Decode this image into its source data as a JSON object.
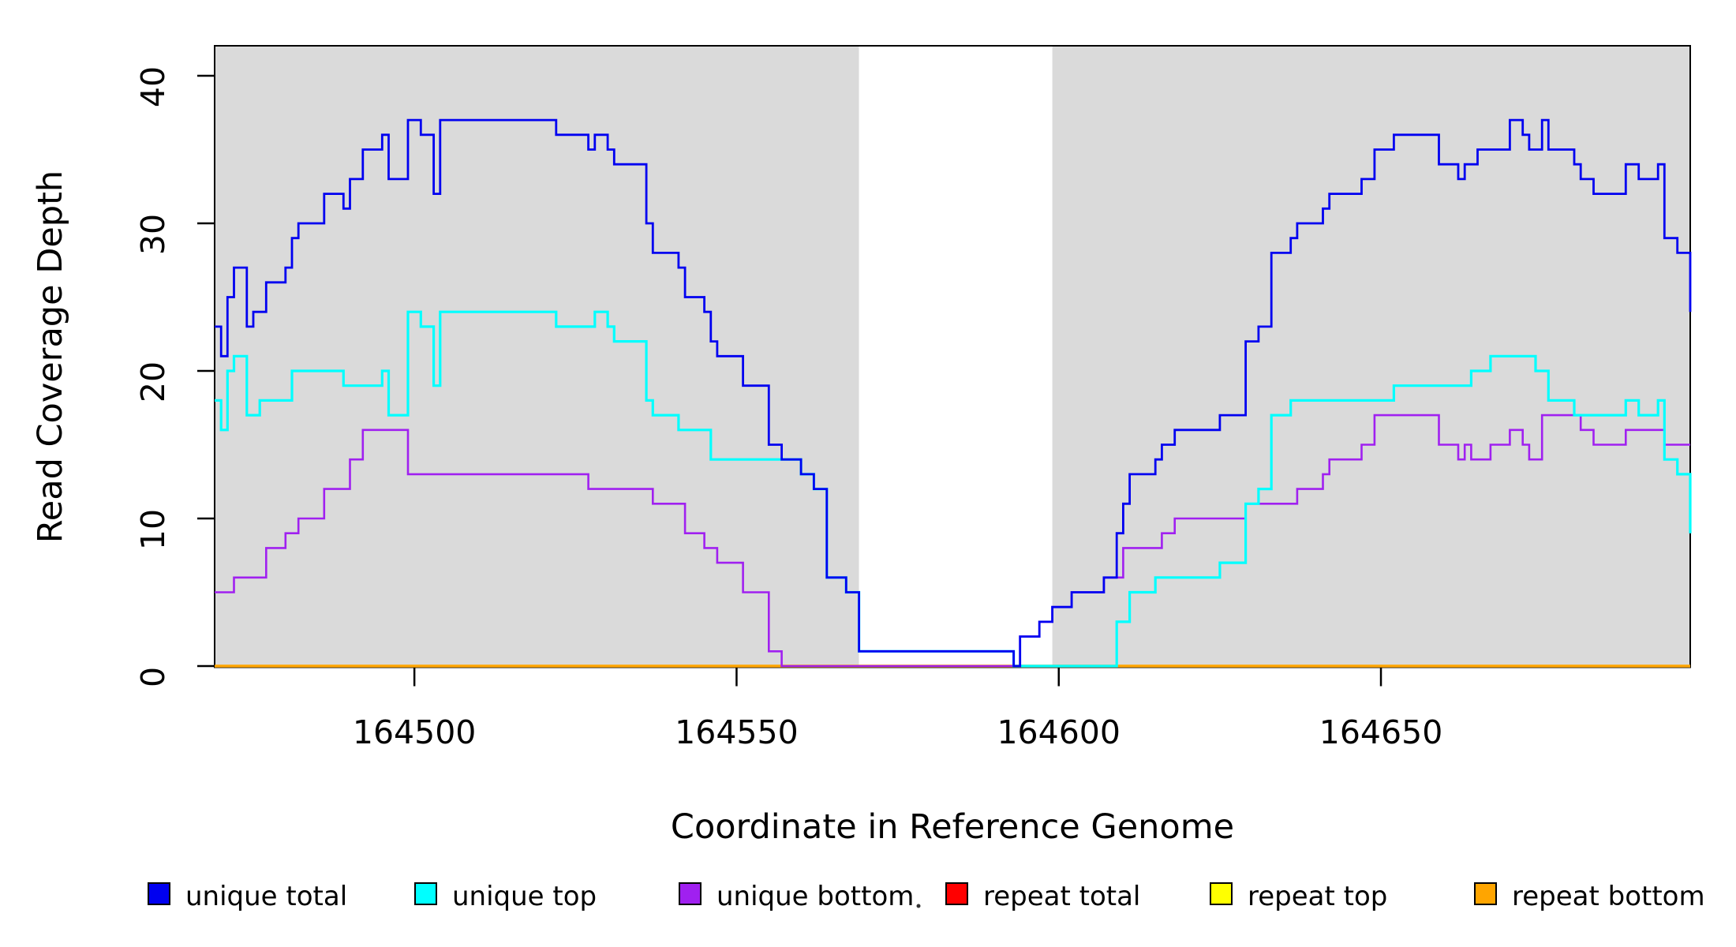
{
  "chart_data": {
    "type": "line",
    "subtype": "step",
    "title": "",
    "xlabel": "Coordinate in Reference Genome",
    "ylabel": "Read Coverage Depth",
    "xlim": [
      164469,
      164698
    ],
    "ylim": [
      0,
      42
    ],
    "x_ticks": [
      164500,
      164550,
      164600,
      164650
    ],
    "y_ticks": [
      0,
      10,
      20,
      30,
      40
    ],
    "grid": false,
    "plot_background": "#FFFFFF",
    "region_color": "#DADADA",
    "border_color": "#000000",
    "background_regions": [
      {
        "name": "unique-region-left",
        "x": [
          164469,
          164569
        ],
        "color": "#DADADA"
      },
      {
        "name": "repeat-gap",
        "x": [
          164569,
          164599
        ],
        "color": "#FFFFFF"
      },
      {
        "name": "unique-region-right",
        "x": [
          164599,
          164698
        ],
        "color": "#DADADA"
      }
    ],
    "legend": {
      "position": "bottom",
      "entries": [
        {
          "label": "unique total",
          "color": "#0000F0"
        },
        {
          "label": "unique top",
          "color": "#00FFFF"
        },
        {
          "label": "unique bottom",
          "color": "#A020F0"
        },
        {
          "label": "repeat total",
          "color": "#FF0000"
        },
        {
          "label": "repeat top",
          "color": "#FFFF00"
        },
        {
          "label": "repeat bottom",
          "color": "#FFA500"
        }
      ]
    },
    "series": [
      {
        "name": "unique total",
        "color": "#0000F0",
        "points": [
          [
            164469,
            23
          ],
          [
            164470,
            21
          ],
          [
            164471,
            25
          ],
          [
            164472,
            27
          ],
          [
            164474,
            23
          ],
          [
            164475,
            24
          ],
          [
            164477,
            26
          ],
          [
            164480,
            27
          ],
          [
            164481,
            29
          ],
          [
            164482,
            30
          ],
          [
            164486,
            32
          ],
          [
            164489,
            31
          ],
          [
            164490,
            33
          ],
          [
            164492,
            35
          ],
          [
            164495,
            36
          ],
          [
            164496,
            33
          ],
          [
            164499,
            37
          ],
          [
            164501,
            36
          ],
          [
            164503,
            32
          ],
          [
            164504,
            37
          ],
          [
            164522,
            36
          ],
          [
            164527,
            35
          ],
          [
            164528,
            36
          ],
          [
            164530,
            35
          ],
          [
            164531,
            34
          ],
          [
            164536,
            30
          ],
          [
            164537,
            28
          ],
          [
            164541,
            27
          ],
          [
            164542,
            25
          ],
          [
            164545,
            24
          ],
          [
            164546,
            22
          ],
          [
            164547,
            21
          ],
          [
            164551,
            19
          ],
          [
            164555,
            15
          ],
          [
            164557,
            14
          ],
          [
            164560,
            13
          ],
          [
            164562,
            12
          ],
          [
            164564,
            6
          ],
          [
            164567,
            5
          ],
          [
            164569,
            1
          ],
          [
            164593,
            0
          ],
          [
            164594,
            2
          ],
          [
            164597,
            3
          ],
          [
            164599,
            4
          ],
          [
            164602,
            5
          ],
          [
            164607,
            6
          ],
          [
            164609,
            9
          ],
          [
            164610,
            11
          ],
          [
            164611,
            13
          ],
          [
            164615,
            14
          ],
          [
            164616,
            15
          ],
          [
            164618,
            16
          ],
          [
            164625,
            17
          ],
          [
            164629,
            22
          ],
          [
            164631,
            23
          ],
          [
            164633,
            28
          ],
          [
            164636,
            29
          ],
          [
            164637,
            30
          ],
          [
            164641,
            31
          ],
          [
            164642,
            32
          ],
          [
            164647,
            33
          ],
          [
            164649,
            35
          ],
          [
            164652,
            36
          ],
          [
            164659,
            34
          ],
          [
            164662,
            33
          ],
          [
            164663,
            34
          ],
          [
            164665,
            35
          ],
          [
            164670,
            37
          ],
          [
            164672,
            36
          ],
          [
            164673,
            35
          ],
          [
            164675,
            37
          ],
          [
            164676,
            35
          ],
          [
            164680,
            34
          ],
          [
            164681,
            33
          ],
          [
            164683,
            32
          ],
          [
            164688,
            34
          ],
          [
            164690,
            33
          ],
          [
            164693,
            34
          ],
          [
            164694,
            29
          ],
          [
            164696,
            28
          ],
          [
            164698,
            24
          ]
        ]
      },
      {
        "name": "unique top",
        "color": "#00FFFF",
        "points": [
          [
            164469,
            18
          ],
          [
            164470,
            16
          ],
          [
            164471,
            20
          ],
          [
            164472,
            21
          ],
          [
            164474,
            17
          ],
          [
            164476,
            18
          ],
          [
            164481,
            20
          ],
          [
            164489,
            19
          ],
          [
            164495,
            20
          ],
          [
            164496,
            17
          ],
          [
            164499,
            24
          ],
          [
            164501,
            23
          ],
          [
            164503,
            19
          ],
          [
            164504,
            24
          ],
          [
            164522,
            23
          ],
          [
            164528,
            24
          ],
          [
            164530,
            23
          ],
          [
            164531,
            22
          ],
          [
            164536,
            18
          ],
          [
            164537,
            17
          ],
          [
            164541,
            16
          ],
          [
            164546,
            14
          ],
          [
            164560,
            13
          ],
          [
            164562,
            12
          ],
          [
            164564,
            6
          ],
          [
            164567,
            5
          ],
          [
            164569,
            1
          ],
          [
            164593,
            0
          ],
          [
            164609,
            3
          ],
          [
            164611,
            5
          ],
          [
            164615,
            6
          ],
          [
            164625,
            7
          ],
          [
            164629,
            11
          ],
          [
            164631,
            12
          ],
          [
            164633,
            17
          ],
          [
            164636,
            18
          ],
          [
            164652,
            19
          ],
          [
            164664,
            20
          ],
          [
            164667,
            21
          ],
          [
            164674,
            20
          ],
          [
            164676,
            18
          ],
          [
            164680,
            17
          ],
          [
            164688,
            18
          ],
          [
            164690,
            17
          ],
          [
            164693,
            18
          ],
          [
            164694,
            14
          ],
          [
            164696,
            13
          ],
          [
            164698,
            9
          ]
        ]
      },
      {
        "name": "unique bottom",
        "color": "#A020F0",
        "points": [
          [
            164469,
            5
          ],
          [
            164472,
            6
          ],
          [
            164477,
            8
          ],
          [
            164480,
            9
          ],
          [
            164482,
            10
          ],
          [
            164486,
            12
          ],
          [
            164490,
            14
          ],
          [
            164492,
            16
          ],
          [
            164499,
            13
          ],
          [
            164527,
            12
          ],
          [
            164537,
            11
          ],
          [
            164542,
            9
          ],
          [
            164545,
            8
          ],
          [
            164547,
            7
          ],
          [
            164551,
            5
          ],
          [
            164555,
            1
          ],
          [
            164557,
            0
          ],
          [
            164594,
            2
          ],
          [
            164597,
            3
          ],
          [
            164599,
            4
          ],
          [
            164602,
            5
          ],
          [
            164607,
            6
          ],
          [
            164610,
            8
          ],
          [
            164616,
            9
          ],
          [
            164618,
            10
          ],
          [
            164629,
            11
          ],
          [
            164637,
            12
          ],
          [
            164641,
            13
          ],
          [
            164642,
            14
          ],
          [
            164647,
            15
          ],
          [
            164649,
            17
          ],
          [
            164659,
            15
          ],
          [
            164662,
            14
          ],
          [
            164663,
            15
          ],
          [
            164664,
            14
          ],
          [
            164667,
            15
          ],
          [
            164670,
            16
          ],
          [
            164672,
            15
          ],
          [
            164673,
            14
          ],
          [
            164675,
            17
          ],
          [
            164681,
            16
          ],
          [
            164683,
            15
          ],
          [
            164688,
            16
          ],
          [
            164694,
            15
          ],
          [
            164698,
            15
          ]
        ]
      },
      {
        "name": "repeat total",
        "color": "#FF0000",
        "points": [
          [
            164469,
            0
          ]
        ]
      },
      {
        "name": "repeat top",
        "color": "#FFFF00",
        "points": [
          [
            164469,
            0
          ]
        ]
      },
      {
        "name": "repeat bottom",
        "color": "#FFA500",
        "points": [
          [
            164469,
            0
          ]
        ]
      }
    ]
  }
}
